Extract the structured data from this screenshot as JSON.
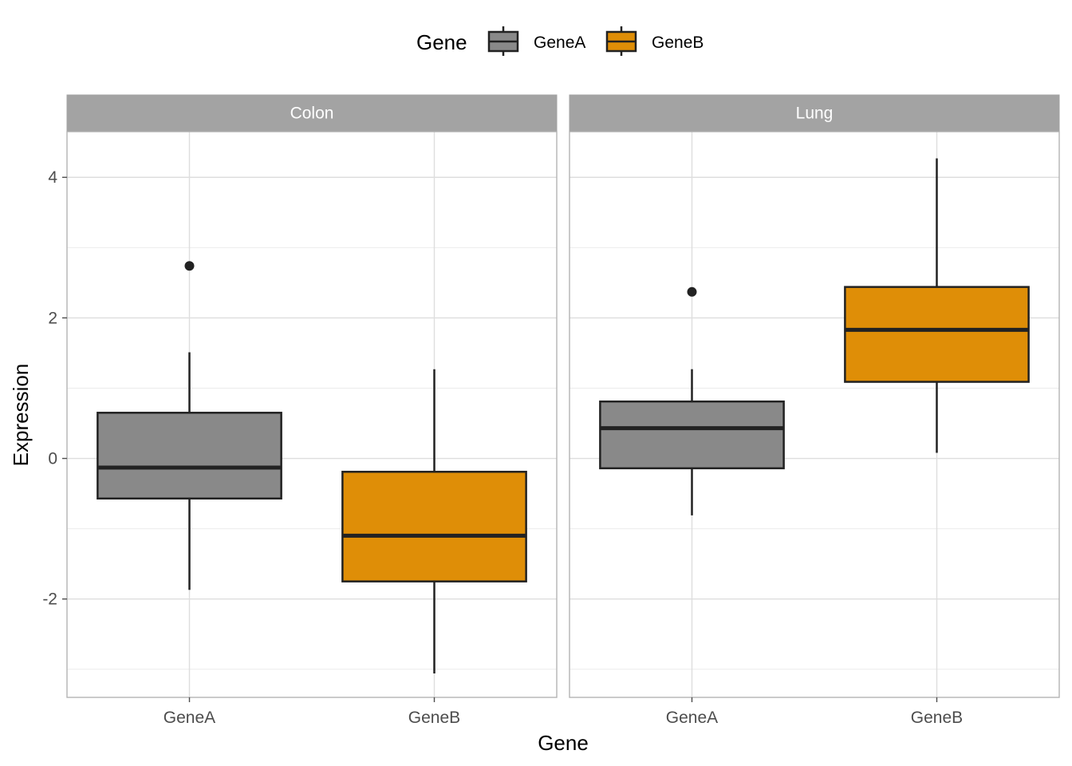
{
  "chart_data": {
    "type": "boxplot",
    "xlabel": "Gene",
    "ylabel": "Expression",
    "categories": [
      "GeneA",
      "GeneB"
    ],
    "facets": [
      "Colon",
      "Lung"
    ],
    "ylim": [
      -3.4,
      4.65
    ],
    "yticks": [
      -2,
      0,
      2,
      4
    ],
    "yticklabels": [
      "-2",
      "0",
      "2",
      "4"
    ],
    "grid": true,
    "legend": {
      "title": "Gene",
      "position": "top",
      "entries": [
        {
          "label": "GeneA",
          "color": "#898989"
        },
        {
          "label": "GeneB",
          "color": "#df8e07"
        }
      ]
    },
    "panels": [
      {
        "facet": "Colon",
        "boxes": [
          {
            "category": "GeneA",
            "whisker_low": -1.87,
            "q1": -0.57,
            "median": -0.13,
            "q3": 0.65,
            "whisker_high": 1.51,
            "outliers": [
              2.74
            ]
          },
          {
            "category": "GeneB",
            "whisker_low": -3.06,
            "q1": -1.75,
            "median": -1.1,
            "q3": -0.19,
            "whisker_high": 1.27,
            "outliers": []
          }
        ]
      },
      {
        "facet": "Lung",
        "boxes": [
          {
            "category": "GeneA",
            "whisker_low": -0.81,
            "q1": -0.14,
            "median": 0.43,
            "q3": 0.81,
            "whisker_high": 1.27,
            "outliers": [
              2.37
            ]
          },
          {
            "category": "GeneB",
            "whisker_low": 0.08,
            "q1": 1.09,
            "median": 1.83,
            "q3": 2.44,
            "whisker_high": 4.27,
            "outliers": []
          }
        ]
      }
    ]
  }
}
